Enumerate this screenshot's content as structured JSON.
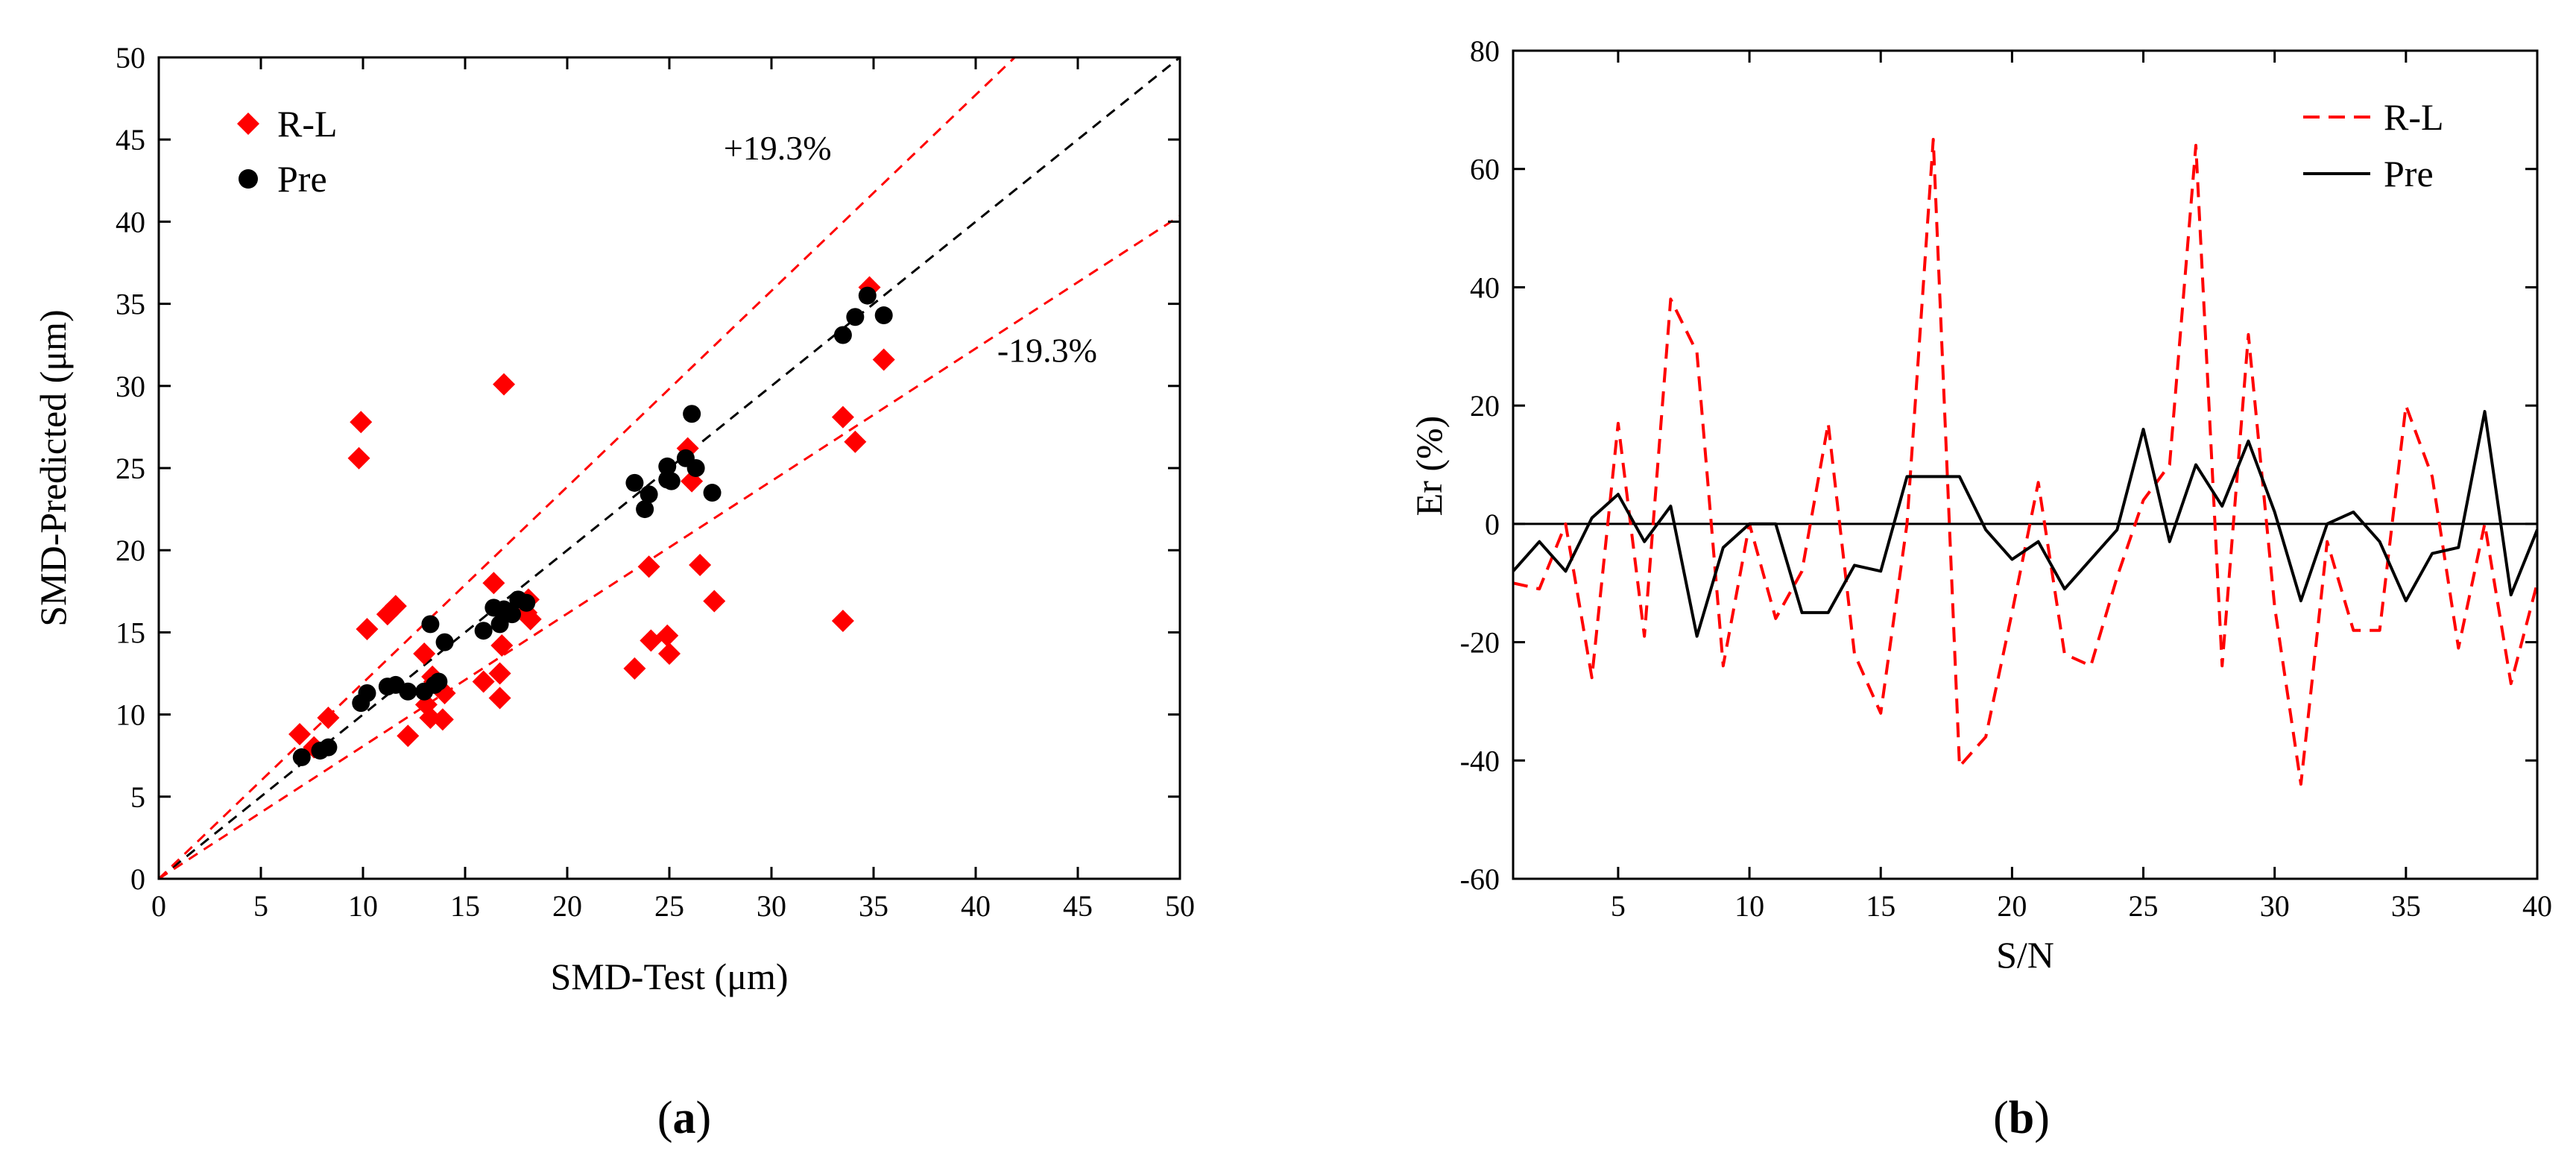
{
  "figure": {
    "panel_a_label": {
      "open": "(",
      "letter": "a",
      "close": ")"
    },
    "panel_b_label": {
      "open": "(",
      "letter": "b",
      "close": ")"
    }
  },
  "colors": {
    "rl": "#ff0000",
    "pre": "#000000",
    "axis": "#000000"
  },
  "chart_data": [
    {
      "id": "a",
      "type": "scatter",
      "title": "",
      "xlabel": "SMD-Test (μm)",
      "ylabel": "SMD-Predicted (μm)",
      "xlim": [
        0,
        50
      ],
      "ylim": [
        0,
        50
      ],
      "xticks": [
        0,
        5,
        10,
        15,
        20,
        25,
        30,
        35,
        40,
        45,
        50
      ],
      "yticks": [
        0,
        5,
        10,
        15,
        20,
        25,
        30,
        35,
        40,
        45,
        50
      ],
      "legend": {
        "position": "top-left",
        "entries": [
          "R-L",
          "Pre"
        ]
      },
      "annotations": [
        {
          "text": "+19.3%",
          "x": 30.3,
          "y": 44.5
        },
        {
          "text": "-19.3%",
          "x": 43.5,
          "y": 32.2
        }
      ],
      "reference_lines": [
        {
          "name": "y=x",
          "slope": 1.0,
          "color": "#000000"
        },
        {
          "name": "+19.3%",
          "slope": 1.193,
          "color": "#ff0000"
        },
        {
          "name": "-19.3%",
          "slope": 0.807,
          "color": "#ff0000"
        }
      ],
      "series": [
        {
          "name": "R-L",
          "marker": "diamond",
          "color": "#ff0000",
          "points": [
            [
              6.9,
              8.8
            ],
            [
              7.6,
              8.0
            ],
            [
              8.3,
              9.8
            ],
            [
              9.8,
              25.6
            ],
            [
              9.9,
              27.8
            ],
            [
              10.2,
              15.2
            ],
            [
              11.2,
              16.1
            ],
            [
              11.6,
              16.6
            ],
            [
              12.2,
              8.7
            ],
            [
              13.0,
              13.7
            ],
            [
              13.1,
              10.6
            ],
            [
              13.3,
              9.8
            ],
            [
              13.4,
              12.3
            ],
            [
              13.5,
              12.0
            ],
            [
              13.9,
              9.7
            ],
            [
              14.0,
              11.3
            ],
            [
              15.9,
              12.0
            ],
            [
              16.4,
              18.0
            ],
            [
              16.7,
              11.0
            ],
            [
              16.7,
              12.5
            ],
            [
              16.8,
              14.2
            ],
            [
              16.9,
              30.1
            ],
            [
              18.0,
              16.2
            ],
            [
              18.1,
              17.0
            ],
            [
              18.2,
              15.8
            ],
            [
              23.3,
              12.8
            ],
            [
              24.0,
              19.0
            ],
            [
              24.1,
              14.5
            ],
            [
              24.9,
              14.8
            ],
            [
              25.0,
              13.7
            ],
            [
              25.9,
              26.2
            ],
            [
              26.1,
              24.2
            ],
            [
              26.5,
              19.1
            ],
            [
              27.2,
              16.9
            ],
            [
              33.5,
              28.1
            ],
            [
              33.5,
              15.7
            ],
            [
              34.1,
              26.6
            ],
            [
              34.8,
              36.0
            ],
            [
              35.5,
              31.6
            ]
          ]
        },
        {
          "name": "Pre",
          "marker": "circle",
          "color": "#000000",
          "points": [
            [
              7.0,
              7.4
            ],
            [
              7.9,
              7.8
            ],
            [
              8.3,
              8.0
            ],
            [
              9.9,
              10.7
            ],
            [
              10.2,
              11.3
            ],
            [
              11.2,
              11.7
            ],
            [
              11.6,
              11.8
            ],
            [
              12.2,
              11.4
            ],
            [
              13.0,
              11.4
            ],
            [
              13.3,
              15.5
            ],
            [
              13.5,
              11.8
            ],
            [
              13.7,
              12.0
            ],
            [
              14.0,
              14.4
            ],
            [
              15.9,
              15.1
            ],
            [
              16.4,
              16.5
            ],
            [
              16.7,
              15.5
            ],
            [
              16.9,
              16.4
            ],
            [
              17.3,
              16.1
            ],
            [
              17.6,
              17.0
            ],
            [
              18.0,
              16.8
            ],
            [
              23.3,
              24.1
            ],
            [
              23.8,
              22.5
            ],
            [
              24.0,
              23.4
            ],
            [
              24.9,
              24.3
            ],
            [
              24.9,
              25.1
            ],
            [
              25.1,
              24.2
            ],
            [
              25.8,
              25.6
            ],
            [
              26.1,
              28.3
            ],
            [
              26.3,
              25.0
            ],
            [
              27.1,
              23.5
            ],
            [
              33.5,
              33.1
            ],
            [
              34.1,
              34.2
            ],
            [
              34.7,
              35.5
            ],
            [
              35.5,
              34.3
            ]
          ]
        }
      ]
    },
    {
      "id": "b",
      "type": "line",
      "title": "",
      "xlabel": "S/N",
      "ylabel": "Er (%)",
      "xlim": [
        1,
        40
      ],
      "ylim": [
        -60,
        80
      ],
      "xticks": [
        5,
        10,
        15,
        20,
        25,
        30,
        35,
        40
      ],
      "yticks": [
        -60,
        -40,
        -20,
        0,
        20,
        40,
        60,
        80
      ],
      "legend": {
        "position": "top-right",
        "entries": [
          "R-L",
          "Pre"
        ]
      },
      "reference_lines": [
        {
          "name": "zero",
          "y": 0,
          "color": "#000000"
        }
      ],
      "x": [
        1,
        2,
        3,
        4,
        5,
        6,
        7,
        8,
        9,
        10,
        11,
        12,
        13,
        14,
        15,
        16,
        17,
        18,
        19,
        20,
        21,
        22,
        23,
        24,
        25,
        26,
        27,
        28,
        29,
        30,
        31,
        32,
        33,
        34,
        35,
        36,
        37,
        38,
        39,
        40
      ],
      "series": [
        {
          "name": "R-L",
          "style": "dashed",
          "color": "#ff0000",
          "values": [
            -10,
            -11,
            0,
            -26,
            17,
            -19,
            38,
            29,
            -24,
            0,
            -16,
            -8,
            17,
            -22,
            -32,
            0,
            65,
            -41,
            -36,
            -15,
            7,
            -22,
            -24,
            -9,
            4,
            10,
            64,
            -24,
            32,
            -14,
            -44,
            -3,
            -18,
            -18,
            20,
            8,
            -21,
            0,
            -27,
            -10
          ]
        },
        {
          "name": "Pre",
          "style": "solid",
          "color": "#000000",
          "values": [
            -8,
            -3,
            -8,
            1,
            5,
            -3,
            3,
            -19,
            -4,
            0,
            0,
            -15,
            -15,
            -7,
            -8,
            8,
            8,
            8,
            -1,
            -6,
            -3,
            -11,
            -6,
            -1,
            16,
            -3,
            10,
            3,
            14,
            2,
            -13,
            0,
            2,
            -3,
            -13,
            -5,
            -4,
            19,
            -12,
            -1
          ]
        }
      ]
    }
  ]
}
